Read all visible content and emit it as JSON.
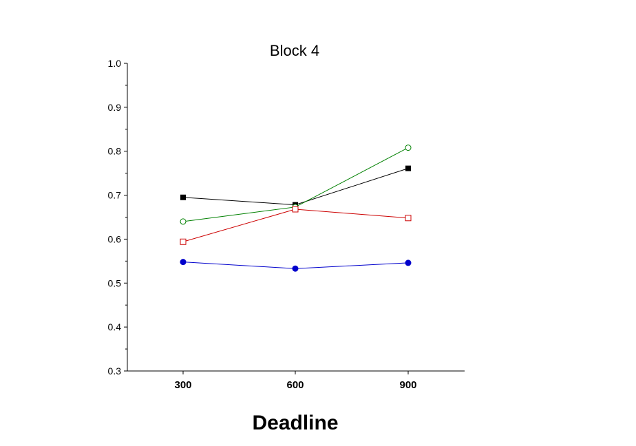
{
  "chart_data": {
    "type": "line",
    "title": "Block 4",
    "xlabel": "Deadline",
    "ylabel": "",
    "categories": [
      "300",
      "600",
      "900"
    ],
    "ylim": [
      0.3,
      1.0
    ],
    "yticks": [
      "0.3",
      "0.4",
      "0.5",
      "0.6",
      "0.7",
      "0.8",
      "0.9",
      "1.0"
    ],
    "grid": false,
    "series": [
      {
        "color": "#000000",
        "marker": "filled-square",
        "values": [
          0.695,
          0.678,
          0.761
        ]
      },
      {
        "color": "#008000",
        "marker": "open-circle",
        "values": [
          0.64,
          0.673,
          0.808
        ]
      },
      {
        "color": "#cc0000",
        "marker": "open-square",
        "values": [
          0.594,
          0.668,
          0.648
        ]
      },
      {
        "color": "#0000cc",
        "marker": "filled-circle",
        "values": [
          0.548,
          0.533,
          0.546
        ]
      }
    ]
  }
}
